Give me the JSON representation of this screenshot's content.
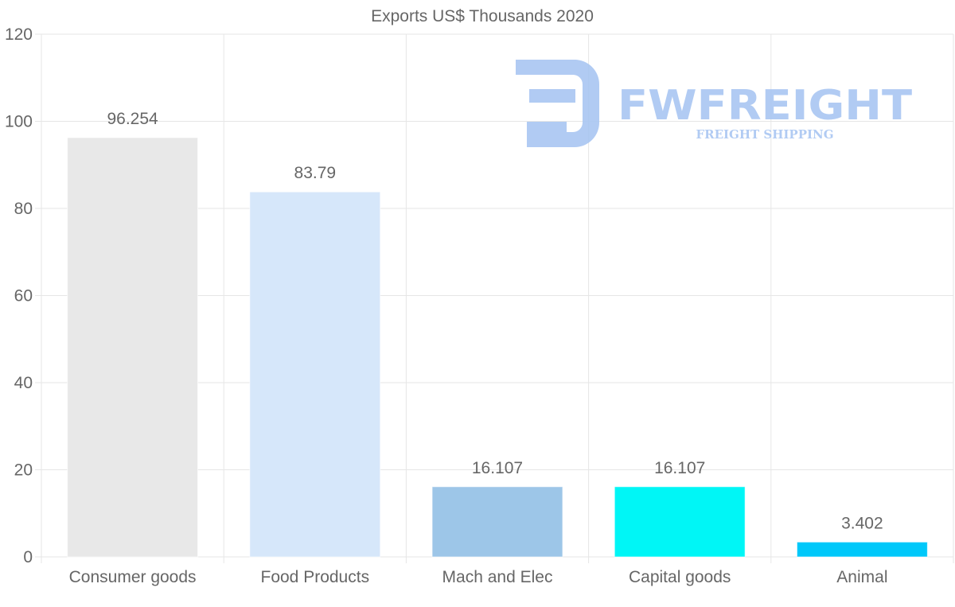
{
  "chart_data": {
    "type": "bar",
    "title": "Exports US$ Thousands 2020",
    "categories": [
      "Consumer goods",
      "Food Products",
      "Mach and Elec",
      "Capital goods",
      "Animal"
    ],
    "values": [
      96.254,
      83.79,
      16.107,
      16.107,
      3.402
    ],
    "value_labels": [
      "96.254",
      "83.79",
      "16.107",
      "16.107",
      "3.402"
    ],
    "colors": [
      "#e8e8e8",
      "#d6e7fa",
      "#9dc6e8",
      "#00f6f6",
      "#00c8fa"
    ],
    "ylim": [
      0,
      120
    ],
    "yticks": [
      0,
      20,
      40,
      60,
      80,
      100,
      120
    ],
    "xlabel": "",
    "ylabel": "",
    "grid": true,
    "legend": "none"
  },
  "watermark": {
    "brand": "FWFREIGHT",
    "tagline": "FREIGHT SHIPPING",
    "color": "#a9c6f2"
  }
}
